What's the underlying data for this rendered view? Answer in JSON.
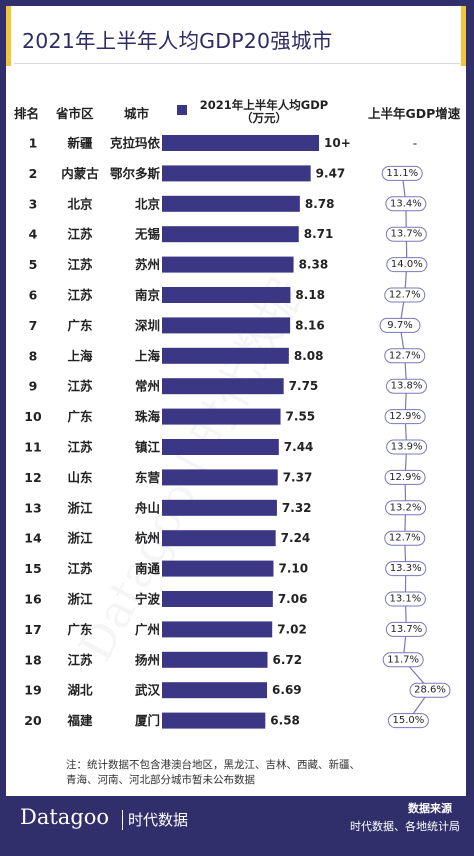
{
  "page": {
    "title": "2021年上半年人均GDP20强城市",
    "note_line1": "注：统计数据不包含港澳台地区，黑龙江、吉林、西藏、新疆、",
    "note_line2": "青海、河南、河北部分城市暂未公布数据",
    "brand": "Datagoo",
    "brand_cn": "时代数据",
    "source_title": "数据来源",
    "source_text": "时代数据、各地统计局",
    "watermark": "Datagoo | 时代数据",
    "colors": {
      "frame": "#312f6b",
      "accent": "#f2c53d",
      "bar": "#3b3785",
      "growth_line": "#7a78b8"
    }
  },
  "table": {
    "headers": {
      "rank": "排名",
      "province": "省市区",
      "city": "城市",
      "gdp": "2021年上半年人均GDP",
      "gdp_unit": "（万元）",
      "growth": "上半年GDP增速"
    }
  },
  "chart_data": {
    "type": "bar",
    "orientation": "horizontal",
    "series_name": "2021年上半年人均GDP（万元）",
    "rows": [
      {
        "rank": "1",
        "province": "新疆",
        "city": "克拉玛依",
        "value": 10.0,
        "label": "10+",
        "growth": null,
        "growth_label": "-"
      },
      {
        "rank": "2",
        "province": "内蒙古",
        "city": "鄂尔多斯",
        "value": 9.47,
        "label": "9.47",
        "growth": 11.1,
        "growth_label": "11.1%"
      },
      {
        "rank": "3",
        "province": "北京",
        "city": "北京",
        "value": 8.78,
        "label": "8.78",
        "growth": 13.4,
        "growth_label": "13.4%"
      },
      {
        "rank": "4",
        "province": "江苏",
        "city": "无锡",
        "value": 8.71,
        "label": "8.71",
        "growth": 13.7,
        "growth_label": "13.7%"
      },
      {
        "rank": "5",
        "province": "江苏",
        "city": "苏州",
        "value": 8.38,
        "label": "8.38",
        "growth": 14.0,
        "growth_label": "14.0%"
      },
      {
        "rank": "6",
        "province": "江苏",
        "city": "南京",
        "value": 8.18,
        "label": "8.18",
        "growth": 12.7,
        "growth_label": "12.7%"
      },
      {
        "rank": "7",
        "province": "广东",
        "city": "深圳",
        "value": 8.16,
        "label": "8.16",
        "growth": 9.7,
        "growth_label": "9.7%"
      },
      {
        "rank": "8",
        "province": "上海",
        "city": "上海",
        "value": 8.08,
        "label": "8.08",
        "growth": 12.7,
        "growth_label": "12.7%"
      },
      {
        "rank": "9",
        "province": "江苏",
        "city": "常州",
        "value": 7.75,
        "label": "7.75",
        "growth": 13.8,
        "growth_label": "13.8%"
      },
      {
        "rank": "10",
        "province": "广东",
        "city": "珠海",
        "value": 7.55,
        "label": "7.55",
        "growth": 12.9,
        "growth_label": "12.9%"
      },
      {
        "rank": "11",
        "province": "江苏",
        "city": "镇江",
        "value": 7.44,
        "label": "7.44",
        "growth": 13.9,
        "growth_label": "13.9%"
      },
      {
        "rank": "12",
        "province": "山东",
        "city": "东营",
        "value": 7.37,
        "label": "7.37",
        "growth": 12.9,
        "growth_label": "12.9%"
      },
      {
        "rank": "13",
        "province": "浙江",
        "city": "舟山",
        "value": 7.32,
        "label": "7.32",
        "growth": 13.2,
        "growth_label": "13.2%"
      },
      {
        "rank": "14",
        "province": "浙江",
        "city": "杭州",
        "value": 7.24,
        "label": "7.24",
        "growth": 12.7,
        "growth_label": "12.7%"
      },
      {
        "rank": "15",
        "province": "江苏",
        "city": "南通",
        "value": 7.1,
        "label": "7.10",
        "growth": 13.3,
        "growth_label": "13.3%"
      },
      {
        "rank": "16",
        "province": "浙江",
        "city": "宁波",
        "value": 7.06,
        "label": "7.06",
        "growth": 13.1,
        "growth_label": "13.1%"
      },
      {
        "rank": "17",
        "province": "广东",
        "city": "广州",
        "value": 7.02,
        "label": "7.02",
        "growth": 13.7,
        "growth_label": "13.7%"
      },
      {
        "rank": "18",
        "province": "江苏",
        "city": "扬州",
        "value": 6.72,
        "label": "6.72",
        "growth": 11.7,
        "growth_label": "11.7%"
      },
      {
        "rank": "19",
        "province": "湖北",
        "city": "武汉",
        "value": 6.69,
        "label": "6.69",
        "growth": 28.6,
        "growth_label": "28.6%"
      },
      {
        "rank": "20",
        "province": "福建",
        "city": "厦门",
        "value": 6.58,
        "label": "6.58",
        "growth": 15.0,
        "growth_label": "15.0%"
      }
    ]
  }
}
